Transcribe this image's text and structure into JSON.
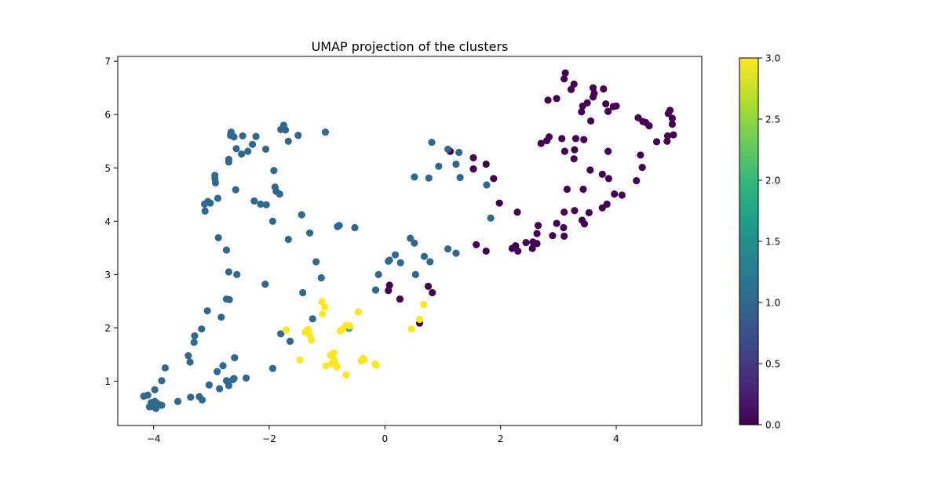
{
  "chart_data": {
    "type": "scatter",
    "title": "UMAP projection of the clusters",
    "xlabel": "",
    "ylabel": "",
    "xlim": [
      -4.62,
      5.48
    ],
    "ylim": [
      0.17,
      7.09
    ],
    "xticks": [
      -4,
      -2,
      0,
      2,
      4
    ],
    "yticks": [
      1,
      2,
      3,
      4,
      5,
      6,
      7
    ],
    "xtick_labels": [
      "−4",
      "−2",
      "0",
      "2",
      "4"
    ],
    "ytick_labels": [
      "1",
      "2",
      "3",
      "4",
      "5",
      "6",
      "7"
    ],
    "grid": false,
    "colorbar": {
      "colormap": "viridis",
      "range": [
        0.0,
        3.0
      ],
      "ticks": [
        0.0,
        0.5,
        1.0,
        1.5,
        2.0,
        2.5,
        3.0
      ],
      "tick_labels": [
        "0.0",
        "0.5",
        "1.0",
        "1.5",
        "2.0",
        "2.5",
        "3.0"
      ]
    },
    "class_colors": {
      "0": "#440154",
      "1": "#31688e",
      "2": "#35b779",
      "3": "#fde725"
    },
    "series": [
      {
        "name": "0",
        "points": [
          [
            3.12,
            6.78
          ],
          [
            3.1,
            6.67
          ],
          [
            3.27,
            6.57
          ],
          [
            3.22,
            6.47
          ],
          [
            3.6,
            6.5
          ],
          [
            3.78,
            6.48
          ],
          [
            3.62,
            6.4
          ],
          [
            3.6,
            6.33
          ],
          [
            2.82,
            6.27
          ],
          [
            2.97,
            6.3
          ],
          [
            3.42,
            6.16
          ],
          [
            3.5,
            6.22
          ],
          [
            3.4,
            6.05
          ],
          [
            3.82,
            6.2
          ],
          [
            3.95,
            6.15
          ],
          [
            4.0,
            6.16
          ],
          [
            3.86,
            6.06
          ],
          [
            3.56,
            5.88
          ],
          [
            4.38,
            5.94
          ],
          [
            4.46,
            5.87
          ],
          [
            4.51,
            5.85
          ],
          [
            4.57,
            5.79
          ],
          [
            4.93,
            6.08
          ],
          [
            4.9,
            6.02
          ],
          [
            4.97,
            5.93
          ],
          [
            4.97,
            5.82
          ],
          [
            4.89,
            5.6
          ],
          [
            4.99,
            5.62
          ],
          [
            4.88,
            5.5
          ],
          [
            4.7,
            5.49
          ],
          [
            2.8,
            5.51
          ],
          [
            2.7,
            5.46
          ],
          [
            2.84,
            5.58
          ],
          [
            3.06,
            5.55
          ],
          [
            3.3,
            5.55
          ],
          [
            3.44,
            5.53
          ],
          [
            3.28,
            5.34
          ],
          [
            3.11,
            5.31
          ],
          [
            3.86,
            5.31
          ],
          [
            4.42,
            5.24
          ],
          [
            3.27,
            5.17
          ],
          [
            4.45,
            5.01
          ],
          [
            1.13,
            5.31
          ],
          [
            1.53,
            5.19
          ],
          [
            1.53,
            4.98
          ],
          [
            1.75,
            5.07
          ],
          [
            1.88,
            4.8
          ],
          [
            3.55,
            4.96
          ],
          [
            3.76,
            4.88
          ],
          [
            3.87,
            4.8
          ],
          [
            3.15,
            4.6
          ],
          [
            3.43,
            4.6
          ],
          [
            4.35,
            4.76
          ],
          [
            3.97,
            4.51
          ],
          [
            4.1,
            4.49
          ],
          [
            1.98,
            4.34
          ],
          [
            3.84,
            4.32
          ],
          [
            3.76,
            4.25
          ],
          [
            3.1,
            4.17
          ],
          [
            3.28,
            4.2
          ],
          [
            3.53,
            4.16
          ],
          [
            2.29,
            4.17
          ],
          [
            2.65,
            3.92
          ],
          [
            2.97,
            3.96
          ],
          [
            3.09,
            3.88
          ],
          [
            3.41,
            4.02
          ],
          [
            3.45,
            3.95
          ],
          [
            2.63,
            3.77
          ],
          [
            2.9,
            3.73
          ],
          [
            3.1,
            3.72
          ],
          [
            1.58,
            3.56
          ],
          [
            1.75,
            3.44
          ],
          [
            2.2,
            3.49
          ],
          [
            2.26,
            3.54
          ],
          [
            2.3,
            3.44
          ],
          [
            2.44,
            3.6
          ],
          [
            2.56,
            3.61
          ],
          [
            2.63,
            3.58
          ],
          [
            2.55,
            3.49
          ],
          [
            0.08,
            2.8
          ],
          [
            0.06,
            2.7
          ],
          [
            0.26,
            2.54
          ],
          [
            0.75,
            2.78
          ],
          [
            0.82,
            2.66
          ],
          [
            0.6,
            2.09
          ]
        ]
      },
      {
        "name": "1",
        "points": [
          [
            -2.66,
            5.67
          ],
          [
            -2.67,
            5.61
          ],
          [
            -2.61,
            5.58
          ],
          [
            -2.46,
            5.6
          ],
          [
            -2.23,
            5.59
          ],
          [
            -1.75,
            5.8
          ],
          [
            -1.8,
            5.72
          ],
          [
            -1.72,
            5.71
          ],
          [
            -1.5,
            5.61
          ],
          [
            -1.03,
            5.67
          ],
          [
            -2.29,
            5.44
          ],
          [
            -2.57,
            5.36
          ],
          [
            -2.37,
            5.31
          ],
          [
            -2.48,
            5.26
          ],
          [
            -2.06,
            5.35
          ],
          [
            -1.67,
            5.5
          ],
          [
            -2.7,
            5.16
          ],
          [
            -2.7,
            5.11
          ],
          [
            -2.94,
            4.86
          ],
          [
            -2.94,
            4.8
          ],
          [
            -2.93,
            4.72
          ],
          [
            -1.92,
            4.95
          ],
          [
            -2.58,
            4.59
          ],
          [
            -1.9,
            4.64
          ],
          [
            -1.88,
            4.56
          ],
          [
            -1.82,
            4.51
          ],
          [
            -3.12,
            4.32
          ],
          [
            -3.06,
            4.37
          ],
          [
            -3.02,
            4.34
          ],
          [
            -2.89,
            4.43
          ],
          [
            -3.11,
            4.19
          ],
          [
            -2.26,
            4.38
          ],
          [
            -2.15,
            4.32
          ],
          [
            -2.05,
            4.31
          ],
          [
            -1.44,
            4.12
          ],
          [
            -1.94,
            4.0
          ],
          [
            -0.79,
            3.92
          ],
          [
            -0.82,
            3.9
          ],
          [
            -0.52,
            3.88
          ],
          [
            -1.3,
            3.78
          ],
          [
            -1.67,
            3.66
          ],
          [
            -2.88,
            3.69
          ],
          [
            -2.74,
            3.46
          ],
          [
            -1.19,
            3.24
          ],
          [
            -2.7,
            3.05
          ],
          [
            -2.56,
            3.0
          ],
          [
            -1.1,
            2.94
          ],
          [
            -2.07,
            2.82
          ],
          [
            -1.42,
            2.66
          ],
          [
            -0.11,
            3.0
          ],
          [
            0.08,
            3.27
          ],
          [
            0.06,
            3.25
          ],
          [
            0.18,
            3.37
          ],
          [
            0.27,
            3.22
          ],
          [
            0.53,
            3.0
          ],
          [
            0.68,
            3.34
          ],
          [
            0.78,
            3.24
          ],
          [
            0.44,
            3.68
          ],
          [
            0.51,
            3.59
          ],
          [
            1.09,
            3.48
          ],
          [
            1.23,
            3.4
          ],
          [
            -0.16,
            2.71
          ],
          [
            -2.74,
            2.54
          ],
          [
            -2.69,
            2.53
          ],
          [
            -3.07,
            2.32
          ],
          [
            -2.83,
            2.2
          ],
          [
            -1.25,
            2.17
          ],
          [
            -1.8,
            1.89
          ],
          [
            -1.64,
            1.75
          ],
          [
            -3.17,
            1.98
          ],
          [
            -3.29,
            1.85
          ],
          [
            -3.3,
            1.73
          ],
          [
            -3.4,
            1.48
          ],
          [
            -3.37,
            1.36
          ],
          [
            -2.6,
            1.44
          ],
          [
            -2.8,
            1.29
          ],
          [
            -2.9,
            1.18
          ],
          [
            -3.8,
            1.25
          ],
          [
            -3.86,
            1.01
          ],
          [
            -2.74,
            1.01
          ],
          [
            -2.61,
            1.05
          ],
          [
            -2.4,
            1.06
          ],
          [
            -2.63,
            1.03
          ],
          [
            -1.94,
            1.24
          ],
          [
            -2.7,
            0.92
          ],
          [
            -3.04,
            0.93
          ],
          [
            -2.86,
            0.86
          ],
          [
            -3.36,
            0.7
          ],
          [
            -3.21,
            0.71
          ],
          [
            -3.16,
            0.65
          ],
          [
            -3.58,
            0.62
          ],
          [
            -4.17,
            0.72
          ],
          [
            -4.1,
            0.74
          ],
          [
            -4.04,
            0.6
          ],
          [
            -3.98,
            0.84
          ],
          [
            -3.98,
            0.62
          ],
          [
            -3.93,
            0.58
          ],
          [
            -3.86,
            0.55
          ],
          [
            -4.07,
            0.52
          ],
          [
            -4.02,
            0.53
          ],
          [
            -3.96,
            0.49
          ],
          [
            0.81,
            5.48
          ],
          [
            0.93,
            5.03
          ],
          [
            1.09,
            5.35
          ],
          [
            1.28,
            5.29
          ],
          [
            1.23,
            5.07
          ],
          [
            0.51,
            4.83
          ],
          [
            0.76,
            4.81
          ],
          [
            1.3,
            4.82
          ],
          [
            1.76,
            4.68
          ],
          [
            1.83,
            4.06
          ]
        ]
      },
      {
        "name": "2",
        "points": [
          [
            -0.62,
            1.99
          ]
        ]
      },
      {
        "name": "3",
        "points": [
          [
            -1.09,
            2.49
          ],
          [
            -1.04,
            2.39
          ],
          [
            -1.08,
            2.26
          ],
          [
            -0.46,
            2.3
          ],
          [
            -0.67,
            2.05
          ],
          [
            -0.61,
            2.04
          ],
          [
            -0.73,
            1.98
          ],
          [
            -0.77,
            1.94
          ],
          [
            -1.71,
            1.96
          ],
          [
            -1.38,
            1.92
          ],
          [
            -1.33,
            1.97
          ],
          [
            -1.3,
            1.87
          ],
          [
            -1.27,
            1.77
          ],
          [
            -0.88,
            1.53
          ],
          [
            -0.94,
            1.49
          ],
          [
            -0.88,
            1.4
          ],
          [
            -0.85,
            1.32
          ],
          [
            -0.92,
            1.33
          ],
          [
            -0.83,
            1.27
          ],
          [
            -0.38,
            1.43
          ],
          [
            -0.36,
            1.4
          ],
          [
            -0.41,
            1.38
          ],
          [
            -0.17,
            1.32
          ],
          [
            -0.15,
            1.3
          ],
          [
            -1.47,
            1.4
          ],
          [
            -1.02,
            1.29
          ],
          [
            -0.67,
            1.12
          ],
          [
            0.46,
            1.98
          ],
          [
            0.6,
            2.16
          ],
          [
            0.67,
            2.44
          ]
        ]
      }
    ]
  }
}
